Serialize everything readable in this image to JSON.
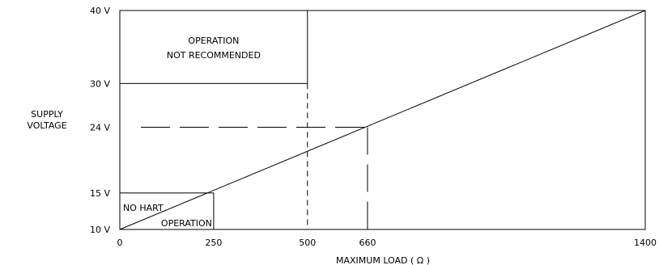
{
  "chart_data": {
    "type": "line",
    "title": "",
    "xlabel": "MAXIMUM LOAD ( Ω )",
    "ylabel_lines": [
      "SUPPLY",
      "VOLTAGE"
    ],
    "x_ticks": [
      {
        "value": 0,
        "label": "0"
      },
      {
        "value": 250,
        "label": "250"
      },
      {
        "value": 500,
        "label": "500"
      },
      {
        "value": 660,
        "label": "660"
      },
      {
        "value": 1400,
        "label": "1400"
      }
    ],
    "y_ticks": [
      {
        "value": 10,
        "label": "10 V"
      },
      {
        "value": 15,
        "label": "15 V"
      },
      {
        "value": 24,
        "label": "24 V"
      },
      {
        "value": 30,
        "label": "30 V"
      },
      {
        "value": 40,
        "label": "40 V"
      }
    ],
    "xlim": [
      0,
      1400
    ],
    "ylim": [
      10,
      40
    ],
    "grid": false,
    "series": [
      {
        "x": [
          0,
          1400
        ],
        "y": [
          10,
          40
        ]
      }
    ],
    "regions": [
      {
        "x": [
          0,
          500
        ],
        "y": [
          30,
          40
        ],
        "label_lines": [
          "OPERATION",
          "NOT RECOMMENDED"
        ]
      },
      {
        "x": [
          0,
          250
        ],
        "y": [
          10,
          15
        ],
        "label_lines": [
          "NO HART",
          "OPERATION"
        ]
      }
    ],
    "reference_lines": [
      {
        "orientation": "horizontal",
        "y": 24,
        "x": [
          0,
          660
        ],
        "style": "dashed"
      },
      {
        "orientation": "vertical",
        "x": 500,
        "y": [
          10,
          30
        ],
        "style": "dashed"
      },
      {
        "orientation": "vertical",
        "x": 660,
        "y": [
          10,
          24
        ],
        "style": "dashed"
      }
    ]
  }
}
